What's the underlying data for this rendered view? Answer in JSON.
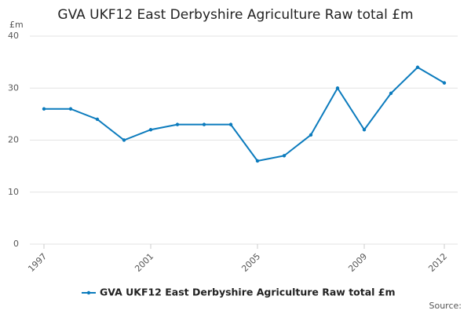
{
  "chart_data": {
    "type": "line",
    "title": "GVA UKF12 East Derbyshire Agriculture Raw total £m",
    "y_unit": "£m",
    "x": [
      1997,
      1998,
      1999,
      2000,
      2001,
      2002,
      2003,
      2004,
      2005,
      2006,
      2007,
      2008,
      2009,
      2010,
      2011,
      2012
    ],
    "series": [
      {
        "name": "GVA UKF12 East Derbyshire Agriculture Raw total £m",
        "color": "#0b7bbd",
        "values": [
          26,
          26,
          24,
          20,
          22,
          23,
          23,
          23,
          16,
          17,
          21,
          30,
          22,
          29,
          34,
          31
        ]
      }
    ],
    "xlim": [
      1997,
      2012
    ],
    "xticks": [
      1997,
      2001,
      2005,
      2009,
      2012
    ],
    "ylim": [
      0,
      40
    ],
    "yticks": [
      0,
      10,
      20,
      30,
      40
    ],
    "grid": true,
    "legend": "bottom",
    "source": "Source:"
  }
}
